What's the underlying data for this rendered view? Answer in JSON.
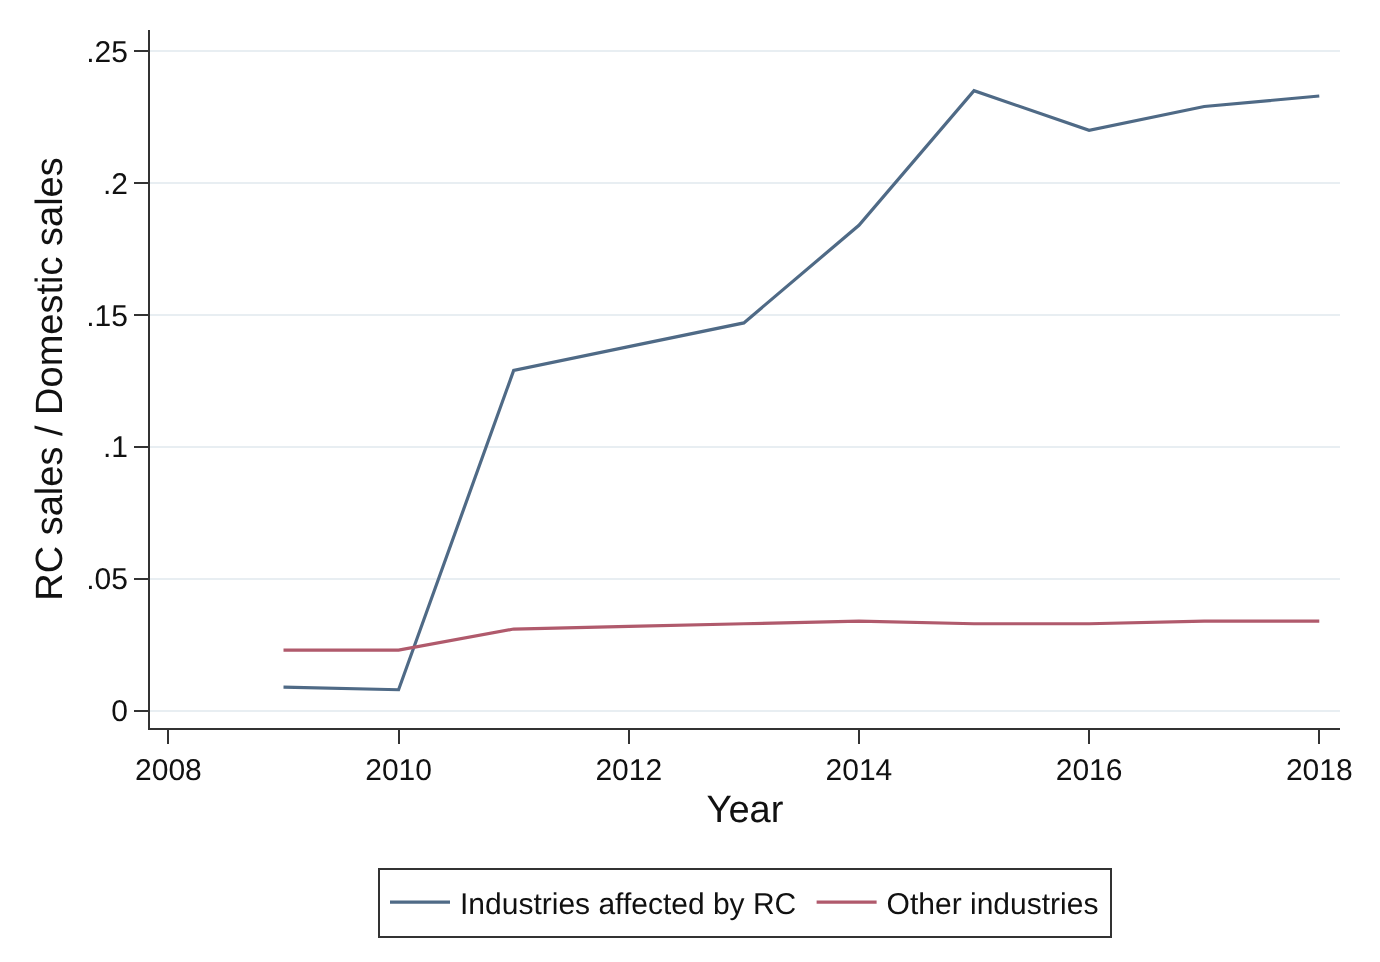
{
  "chart_data": {
    "type": "line",
    "xlabel": "Year",
    "ylabel": "RC sales / Domestic sales",
    "x": [
      2009,
      2010,
      2011,
      2012,
      2013,
      2014,
      2015,
      2016,
      2017,
      2018
    ],
    "series": [
      {
        "name": "Industries affected by RC",
        "color": "#4f6a86",
        "values": [
          0.009,
          0.008,
          0.129,
          0.138,
          0.147,
          0.184,
          0.235,
          0.22,
          0.229,
          0.233
        ]
      },
      {
        "name": "Other industries",
        "color": "#b05a6c",
        "values": [
          0.023,
          0.023,
          0.031,
          0.032,
          0.033,
          0.034,
          0.033,
          0.033,
          0.034,
          0.034
        ]
      }
    ],
    "xlim": [
      2007.84,
      2018.18
    ],
    "xticks": [
      2008,
      2010,
      2012,
      2014,
      2016,
      2018
    ],
    "ylim": [
      -0.0065,
      0.258
    ],
    "yticks": [
      {
        "value": 0,
        "label": "0"
      },
      {
        "value": 0.05,
        "label": ".05"
      },
      {
        "value": 0.1,
        "label": ".1"
      },
      {
        "value": 0.15,
        "label": ".15"
      },
      {
        "value": 0.2,
        "label": ".2"
      },
      {
        "value": 0.25,
        "label": ".25"
      }
    ],
    "grid": "y",
    "legend": "bottom",
    "marker": "none",
    "line_style": "solid"
  }
}
